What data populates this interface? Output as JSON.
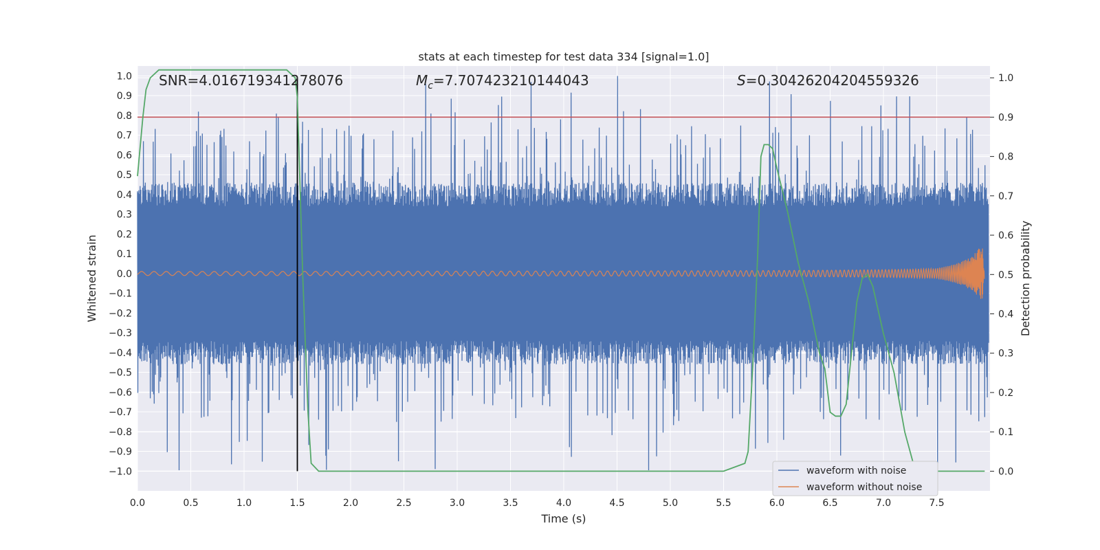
{
  "chart_data": {
    "type": "line",
    "title": "stats at each timestep for test data 334 [signal=1.0]",
    "xlabel": "Time (s)",
    "ylabel_left": "Whitened strain",
    "ylabel_right": "Detection probability",
    "xlim": [
      0.0,
      8.0
    ],
    "ylim_left": [
      -1.1,
      1.05
    ],
    "ylim_right": [
      -0.05,
      1.03
    ],
    "x_ticks": [
      0.0,
      0.5,
      1.0,
      1.5,
      2.0,
      2.5,
      3.0,
      3.5,
      4.0,
      4.5,
      5.0,
      5.5,
      6.0,
      6.5,
      7.0,
      7.5
    ],
    "y_ticks_left": [
      1.0,
      0.9,
      0.8,
      0.7,
      0.6,
      0.5,
      0.4,
      0.3,
      0.2,
      0.1,
      0.0,
      -0.1,
      -0.2,
      -0.3,
      -0.4,
      -0.5,
      -0.6,
      -0.7,
      -0.8,
      -0.9,
      -1.0
    ],
    "y_ticks_right": [
      1.0,
      0.9,
      0.8,
      0.7,
      0.6,
      0.5,
      0.4,
      0.3,
      0.2,
      0.1,
      0.0
    ],
    "grid": true,
    "legend_position": "lower right",
    "annotations": {
      "snr": "SNR=4.016719341278076",
      "mc_symbol": "M",
      "mc_sub": "c",
      "mc_value": "=7.707423210144043",
      "s_symbol": "S",
      "s_value": "=0.30426204204559326"
    },
    "series": [
      {
        "name": "waveform with noise",
        "axis": "left",
        "color": "#4c72b0",
        "description_points": "noise envelope ~±0.4 core, spikes to ±1.0"
      },
      {
        "name": "waveform without noise",
        "axis": "left",
        "color": "#dd8452",
        "chirp_amplitude_end": 0.13,
        "chirp_end_time": 7.95
      },
      {
        "name": "detection probability",
        "axis": "right",
        "color": "#55a868",
        "x": [
          0.0,
          0.05,
          0.08,
          0.12,
          0.2,
          0.3,
          0.5,
          0.8,
          1.0,
          1.2,
          1.4,
          1.48,
          1.5,
          1.55,
          1.6,
          1.63,
          1.7,
          1.8,
          2.0,
          3.0,
          4.0,
          5.0,
          5.5,
          5.7,
          5.73,
          5.78,
          5.82,
          5.85,
          5.88,
          5.92,
          5.96,
          6.0,
          6.1,
          6.2,
          6.3,
          6.4,
          6.45,
          6.5,
          6.55,
          6.6,
          6.65,
          6.7,
          6.75,
          6.8,
          6.85,
          6.9,
          7.0,
          7.1,
          7.2,
          7.3,
          7.4,
          7.6,
          7.95
        ],
        "y": [
          0.75,
          0.9,
          0.97,
          1.0,
          1.02,
          1.02,
          1.02,
          1.02,
          1.02,
          1.02,
          1.02,
          1.0,
          0.95,
          0.5,
          0.15,
          0.02,
          0.0,
          0.0,
          0.0,
          0.0,
          0.0,
          0.0,
          0.0,
          0.02,
          0.05,
          0.3,
          0.55,
          0.8,
          0.83,
          0.83,
          0.82,
          0.77,
          0.66,
          0.53,
          0.43,
          0.3,
          0.26,
          0.15,
          0.14,
          0.14,
          0.17,
          0.3,
          0.43,
          0.49,
          0.5,
          0.47,
          0.35,
          0.25,
          0.1,
          0.0,
          0.0,
          0.0,
          0.0
        ]
      }
    ],
    "threshold_line": {
      "y_right": 0.9,
      "color": "#c44e52"
    },
    "marker_line": {
      "x": 1.5,
      "color": "#000000"
    }
  }
}
